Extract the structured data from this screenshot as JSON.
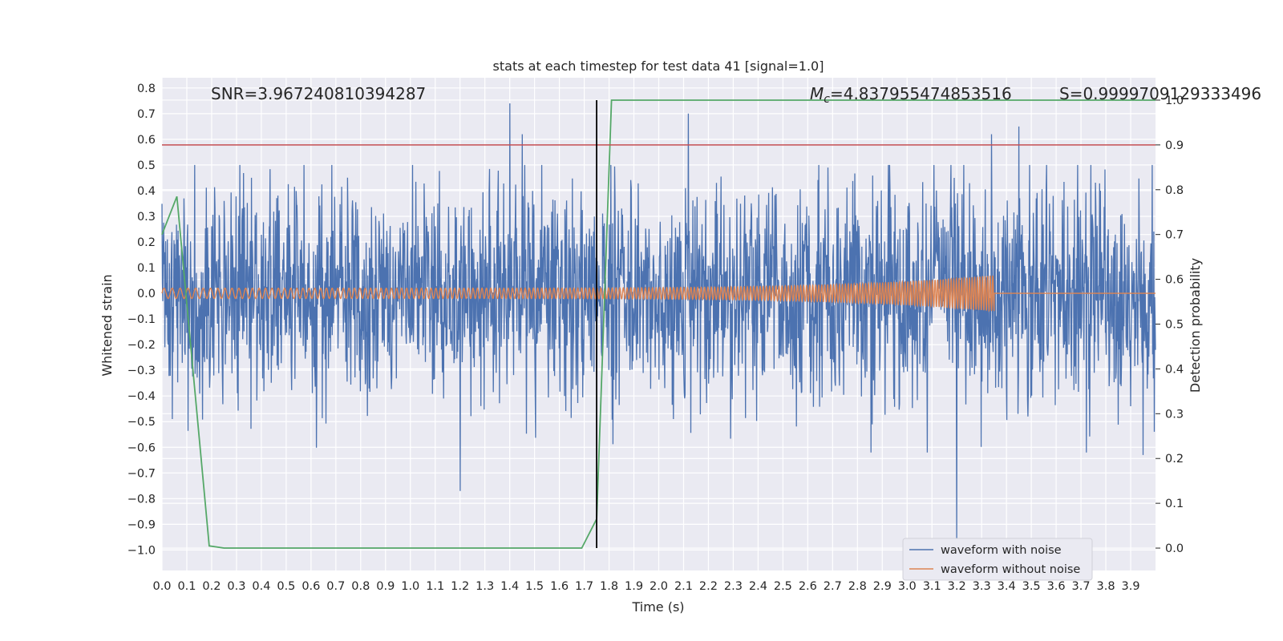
{
  "chart_data": {
    "type": "line",
    "title": "stats at each timestep for test data 41 [signal=1.0]",
    "xlabel": "Time (s)",
    "ylabel": "Whitened strain",
    "ylabel_right": "Detection probability",
    "xlim": [
      0.0,
      4.0
    ],
    "ylim": [
      -1.08,
      0.84
    ],
    "ylim_right": [
      -0.05,
      1.05
    ],
    "x_ticks": [
      "0.0",
      "0.1",
      "0.2",
      "0.3",
      "0.4",
      "0.5",
      "0.6",
      "0.7",
      "0.8",
      "0.9",
      "1.0",
      "1.1",
      "1.2",
      "1.3",
      "1.4",
      "1.5",
      "1.6",
      "1.7",
      "1.8",
      "1.9",
      "2.0",
      "2.1",
      "2.2",
      "2.3",
      "2.4",
      "2.5",
      "2.6",
      "2.7",
      "2.8",
      "2.9",
      "3.0",
      "3.1",
      "3.2",
      "3.3",
      "3.4",
      "3.5",
      "3.6",
      "3.7",
      "3.8",
      "3.9"
    ],
    "y_ticks": [
      "0.8",
      "0.7",
      "0.6",
      "0.5",
      "0.4",
      "0.3",
      "0.2",
      "0.1",
      "0.0",
      "−0.1",
      "−0.2",
      "−0.3",
      "−0.4",
      "−0.5",
      "−0.6",
      "−0.7",
      "−0.8",
      "−0.9",
      "−1.0"
    ],
    "y_right_ticks": [
      "1.0",
      "0.9",
      "0.8",
      "0.7",
      "0.6",
      "0.5",
      "0.4",
      "0.3",
      "0.2",
      "0.1",
      "0.0"
    ],
    "annotations": {
      "snr": "SNR=3.967240810394287",
      "mc_symbol": "M",
      "mc_sub": "c",
      "mc_value": "=4.837955474853516",
      "s": "S=0.9999709129333496"
    },
    "threshold": 0.9,
    "merger_time": 1.75,
    "series": [
      {
        "name": "waveform with noise",
        "color": "#4c72b0",
        "style": "gaussian noise, std ≈ 0.21, sampled over 0–4 s",
        "samples": 2400,
        "std": 0.21,
        "spikes": [
          [
            1.4,
            0.74
          ],
          [
            1.2,
            -0.77
          ],
          [
            2.12,
            0.7
          ],
          [
            3.2,
            -0.98
          ],
          [
            3.45,
            0.65
          ],
          [
            3.34,
            0.62
          ],
          [
            1.45,
            0.62
          ],
          [
            3.95,
            -0.63
          ]
        ]
      },
      {
        "name": "waveform without noise",
        "color": "#dd8452",
        "style": "chirp: amplitude 0.02 → 0.07, ending at 3.35 s",
        "chirp_end": 3.35,
        "amp_start": 0.02,
        "amp_end": 0.07
      },
      {
        "name": "detection probability",
        "color": "#55a868",
        "x": [
          0.0,
          0.06,
          0.19,
          0.25,
          1.69,
          1.75,
          1.81,
          4.0
        ],
        "y": [
          0.7,
          0.785,
          0.005,
          0.0,
          0.0,
          0.065,
          1.0,
          1.0
        ]
      }
    ],
    "legend": {
      "position": "lower-right",
      "entries": [
        {
          "label": "waveform with noise",
          "color": "#4c72b0"
        },
        {
          "label": "waveform without noise",
          "color": "#dd8452"
        }
      ]
    },
    "colors": {
      "axes_bg": "#eaeaf2",
      "grid": "#ffffff",
      "threshold_line": "#c44e52",
      "merger_line": "#000000"
    }
  }
}
